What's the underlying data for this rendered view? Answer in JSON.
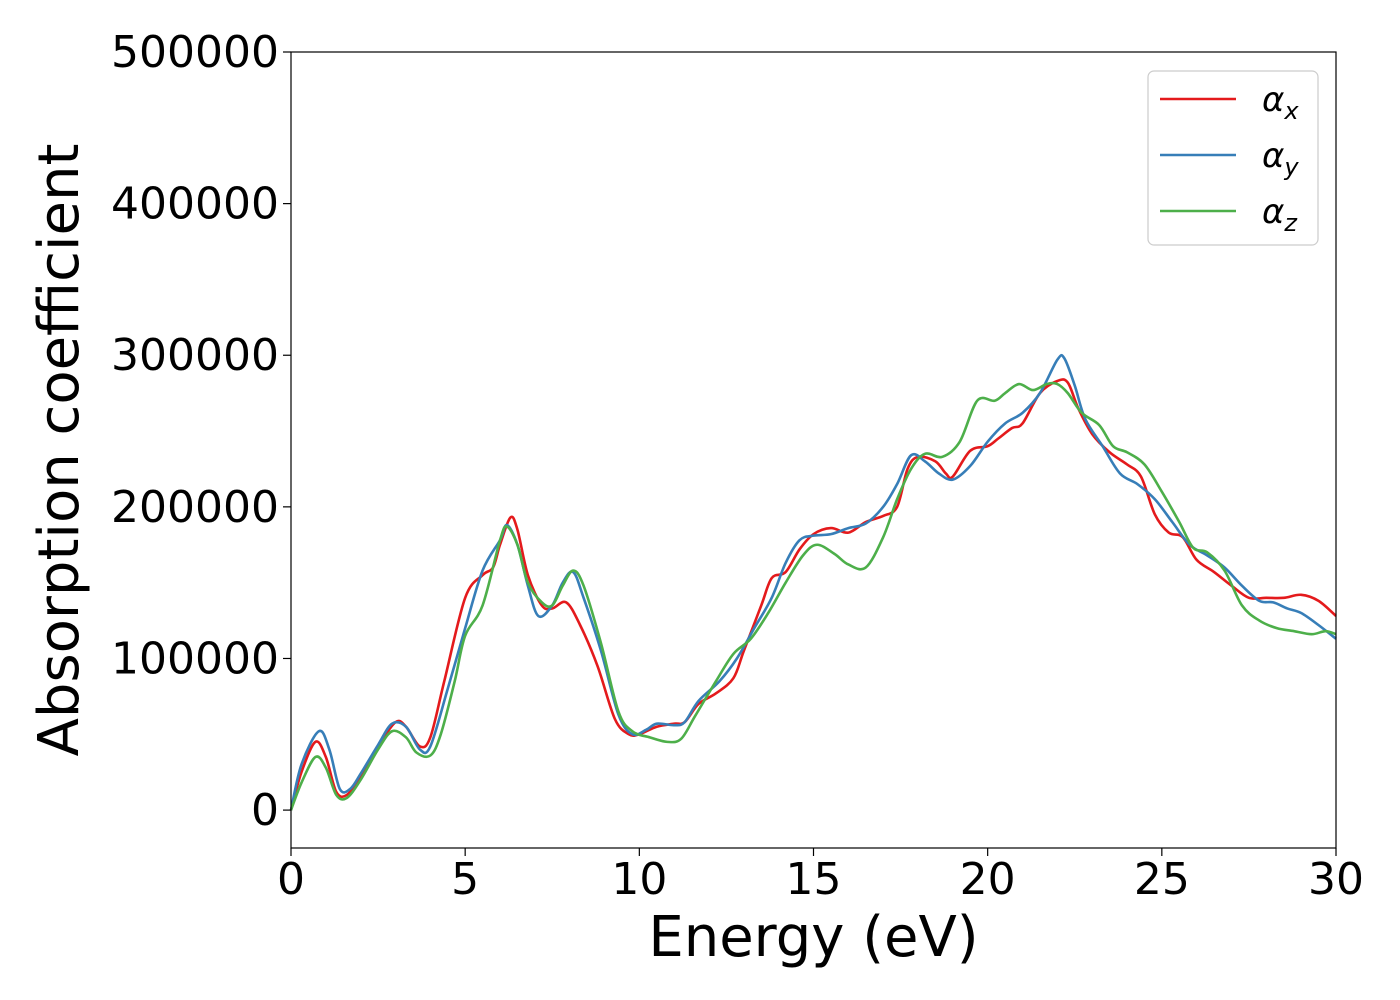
{
  "chart_data": {
    "type": "line",
    "title": "",
    "xlabel": "Energy (eV)",
    "ylabel": "Absorption coefficient",
    "xlim": [
      0,
      30
    ],
    "ylim": [
      -25000,
      500000
    ],
    "xticks": [
      0,
      5,
      10,
      15,
      20,
      25,
      30
    ],
    "yticks": [
      0,
      100000,
      200000,
      300000,
      400000,
      500000
    ],
    "grid": false,
    "legend_position": "top-right",
    "series": [
      {
        "name": "α_x",
        "symbol": "α",
        "subscript": "x",
        "color": "#e41a1c",
        "points": [
          [
            0,
            0
          ],
          [
            0.3,
            25000
          ],
          [
            0.7,
            45000
          ],
          [
            1.0,
            35000
          ],
          [
            1.3,
            12000
          ],
          [
            1.6,
            10000
          ],
          [
            2.0,
            22000
          ],
          [
            2.5,
            42000
          ],
          [
            3.0,
            58000
          ],
          [
            3.3,
            55000
          ],
          [
            3.7,
            42000
          ],
          [
            4.0,
            48000
          ],
          [
            4.4,
            85000
          ],
          [
            5.0,
            140000
          ],
          [
            5.5,
            155000
          ],
          [
            5.8,
            160000
          ],
          [
            6.0,
            175000
          ],
          [
            6.3,
            193000
          ],
          [
            6.5,
            185000
          ],
          [
            6.8,
            155000
          ],
          [
            7.2,
            135000
          ],
          [
            7.5,
            133000
          ],
          [
            7.9,
            137000
          ],
          [
            8.3,
            122000
          ],
          [
            8.8,
            95000
          ],
          [
            9.3,
            60000
          ],
          [
            9.7,
            50000
          ],
          [
            10.0,
            50000
          ],
          [
            10.5,
            55000
          ],
          [
            11.0,
            57000
          ],
          [
            11.3,
            58000
          ],
          [
            11.7,
            70000
          ],
          [
            12.2,
            77000
          ],
          [
            12.7,
            87000
          ],
          [
            13.0,
            105000
          ],
          [
            13.5,
            135000
          ],
          [
            13.8,
            153000
          ],
          [
            14.2,
            157000
          ],
          [
            14.6,
            172000
          ],
          [
            15.0,
            182000
          ],
          [
            15.5,
            186000
          ],
          [
            16.0,
            183000
          ],
          [
            16.5,
            190000
          ],
          [
            17.0,
            194000
          ],
          [
            17.4,
            200000
          ],
          [
            17.7,
            225000
          ],
          [
            18.0,
            233000
          ],
          [
            18.5,
            230000
          ],
          [
            18.8,
            222000
          ],
          [
            19.0,
            220000
          ],
          [
            19.5,
            237000
          ],
          [
            20.0,
            240000
          ],
          [
            20.3,
            245000
          ],
          [
            20.7,
            252000
          ],
          [
            21.0,
            255000
          ],
          [
            21.5,
            275000
          ],
          [
            22.0,
            283000
          ],
          [
            22.3,
            282000
          ],
          [
            22.6,
            265000
          ],
          [
            23.0,
            248000
          ],
          [
            23.5,
            236000
          ],
          [
            24.0,
            228000
          ],
          [
            24.4,
            220000
          ],
          [
            24.8,
            195000
          ],
          [
            25.2,
            183000
          ],
          [
            25.6,
            180000
          ],
          [
            26.0,
            165000
          ],
          [
            26.5,
            157000
          ],
          [
            27.0,
            148000
          ],
          [
            27.5,
            140000
          ],
          [
            28.0,
            140000
          ],
          [
            28.5,
            140000
          ],
          [
            29.0,
            142000
          ],
          [
            29.5,
            138000
          ],
          [
            30.0,
            128000
          ]
        ]
      },
      {
        "name": "α_y",
        "symbol": "α",
        "subscript": "y",
        "color": "#377eb8",
        "points": [
          [
            0,
            0
          ],
          [
            0.3,
            30000
          ],
          [
            0.8,
            52000
          ],
          [
            1.1,
            40000
          ],
          [
            1.4,
            14000
          ],
          [
            1.7,
            14000
          ],
          [
            2.0,
            24000
          ],
          [
            2.5,
            43000
          ],
          [
            2.9,
            57000
          ],
          [
            3.3,
            55000
          ],
          [
            3.7,
            40000
          ],
          [
            4.0,
            42000
          ],
          [
            4.5,
            80000
          ],
          [
            5.0,
            120000
          ],
          [
            5.5,
            158000
          ],
          [
            6.0,
            178000
          ],
          [
            6.2,
            188000
          ],
          [
            6.5,
            175000
          ],
          [
            6.8,
            148000
          ],
          [
            7.1,
            128000
          ],
          [
            7.5,
            135000
          ],
          [
            7.8,
            150000
          ],
          [
            8.1,
            157000
          ],
          [
            8.4,
            140000
          ],
          [
            8.9,
            105000
          ],
          [
            9.4,
            63000
          ],
          [
            9.8,
            50000
          ],
          [
            10.2,
            53000
          ],
          [
            10.5,
            57000
          ],
          [
            11.0,
            56000
          ],
          [
            11.3,
            58000
          ],
          [
            11.7,
            72000
          ],
          [
            12.3,
            85000
          ],
          [
            12.8,
            100000
          ],
          [
            13.3,
            120000
          ],
          [
            13.8,
            140000
          ],
          [
            14.2,
            163000
          ],
          [
            14.6,
            178000
          ],
          [
            15.0,
            181000
          ],
          [
            15.5,
            182000
          ],
          [
            16.0,
            186000
          ],
          [
            16.5,
            189000
          ],
          [
            17.0,
            200000
          ],
          [
            17.4,
            215000
          ],
          [
            17.8,
            234000
          ],
          [
            18.2,
            230000
          ],
          [
            18.6,
            222000
          ],
          [
            19.0,
            218000
          ],
          [
            19.5,
            227000
          ],
          [
            20.0,
            243000
          ],
          [
            20.5,
            255000
          ],
          [
            21.0,
            262000
          ],
          [
            21.5,
            275000
          ],
          [
            22.0,
            297000
          ],
          [
            22.2,
            298000
          ],
          [
            22.5,
            280000
          ],
          [
            22.8,
            258000
          ],
          [
            23.3,
            240000
          ],
          [
            23.8,
            222000
          ],
          [
            24.3,
            215000
          ],
          [
            24.8,
            205000
          ],
          [
            25.3,
            190000
          ],
          [
            25.8,
            175000
          ],
          [
            26.3,
            168000
          ],
          [
            26.8,
            160000
          ],
          [
            27.3,
            148000
          ],
          [
            27.8,
            138000
          ],
          [
            28.2,
            137000
          ],
          [
            28.6,
            133000
          ],
          [
            29.0,
            130000
          ],
          [
            29.5,
            122000
          ],
          [
            30.0,
            113000
          ]
        ]
      },
      {
        "name": "α_z",
        "symbol": "α",
        "subscript": "z",
        "color": "#4daf4a",
        "points": [
          [
            0,
            0
          ],
          [
            0.3,
            18000
          ],
          [
            0.7,
            35000
          ],
          [
            1.0,
            28000
          ],
          [
            1.3,
            10000
          ],
          [
            1.6,
            8000
          ],
          [
            2.0,
            20000
          ],
          [
            2.5,
            40000
          ],
          [
            2.9,
            52000
          ],
          [
            3.3,
            48000
          ],
          [
            3.6,
            38000
          ],
          [
            4.0,
            36000
          ],
          [
            4.3,
            50000
          ],
          [
            4.7,
            85000
          ],
          [
            5.0,
            115000
          ],
          [
            5.5,
            135000
          ],
          [
            6.0,
            178000
          ],
          [
            6.2,
            187000
          ],
          [
            6.5,
            175000
          ],
          [
            6.8,
            150000
          ],
          [
            7.2,
            137000
          ],
          [
            7.5,
            135000
          ],
          [
            7.8,
            148000
          ],
          [
            8.1,
            158000
          ],
          [
            8.4,
            148000
          ],
          [
            8.9,
            110000
          ],
          [
            9.4,
            65000
          ],
          [
            9.8,
            52000
          ],
          [
            10.3,
            48000
          ],
          [
            10.8,
            45000
          ],
          [
            11.2,
            47000
          ],
          [
            11.6,
            62000
          ],
          [
            12.2,
            85000
          ],
          [
            12.7,
            103000
          ],
          [
            13.2,
            113000
          ],
          [
            13.7,
            130000
          ],
          [
            14.2,
            150000
          ],
          [
            14.7,
            168000
          ],
          [
            15.1,
            175000
          ],
          [
            15.6,
            169000
          ],
          [
            16.0,
            162000
          ],
          [
            16.5,
            160000
          ],
          [
            17.0,
            180000
          ],
          [
            17.4,
            205000
          ],
          [
            17.8,
            225000
          ],
          [
            18.2,
            235000
          ],
          [
            18.7,
            233000
          ],
          [
            19.2,
            243000
          ],
          [
            19.7,
            270000
          ],
          [
            20.2,
            270000
          ],
          [
            20.5,
            275000
          ],
          [
            20.9,
            281000
          ],
          [
            21.3,
            277000
          ],
          [
            21.7,
            281000
          ],
          [
            22.0,
            281000
          ],
          [
            22.3,
            275000
          ],
          [
            22.7,
            262000
          ],
          [
            23.2,
            254000
          ],
          [
            23.6,
            240000
          ],
          [
            24.0,
            236000
          ],
          [
            24.5,
            228000
          ],
          [
            25.0,
            210000
          ],
          [
            25.5,
            190000
          ],
          [
            25.9,
            173000
          ],
          [
            26.3,
            170000
          ],
          [
            26.8,
            158000
          ],
          [
            27.3,
            135000
          ],
          [
            27.8,
            125000
          ],
          [
            28.3,
            120000
          ],
          [
            28.8,
            118000
          ],
          [
            29.3,
            116000
          ],
          [
            29.7,
            118000
          ],
          [
            30.0,
            116000
          ]
        ]
      }
    ]
  }
}
